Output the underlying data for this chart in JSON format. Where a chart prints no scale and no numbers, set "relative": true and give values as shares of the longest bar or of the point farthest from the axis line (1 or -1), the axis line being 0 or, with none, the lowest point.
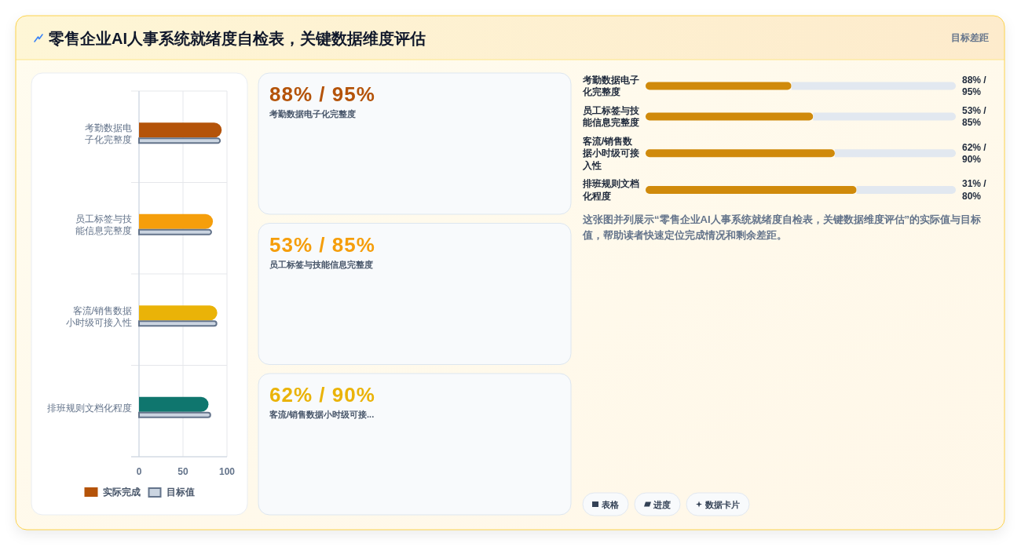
{
  "chart_data": [
    {
      "type": "bar",
      "orientation": "horizontal",
      "title": "零售企业AI人事系统就绪度自检表，关键数据维度评估",
      "categories": [
        "考勤数据电子化完整度",
        "员工标签与技能信息完整度",
        "客流/销售数据小时级可接入性",
        "排班规则文档化程度"
      ],
      "series": [
        {
          "name": "实际完成",
          "color": "#b45309",
          "colors": [
            "#b45309",
            "#f59e0b",
            "#eab308",
            "#0f766e"
          ],
          "values": [
            94,
            84,
            89,
            79
          ]
        },
        {
          "name": "目标值",
          "color": "#cbd5e1",
          "values": [
            93,
            83,
            89,
            82
          ]
        }
      ],
      "xlim": [
        0,
        100
      ],
      "xticks": [
        0,
        50,
        100
      ],
      "grid": true,
      "legend": "bottom"
    },
    {
      "type": "other",
      "categories": [
        "考勤数据电子化完整度",
        "员工标签与技能信息完整度",
        "客流/销售数据小时级可接..."
      ],
      "value_labels": [
        "88% / 95%",
        "53% / 85%",
        "62% / 90%"
      ]
    },
    {
      "type": "bar",
      "orientation": "horizontal",
      "stacked": true,
      "relative": true,
      "subtitle": "目标差距",
      "categories": [
        "考勤数据电子化完整度",
        "员工标签与技能信息完整度",
        "客流/销售数据小时级可接入性",
        "排班规则文档化程度"
      ],
      "series": [
        {
          "color": "#d08a0b",
          "values": [
            0.47,
            0.54,
            0.61,
            0.68
          ]
        },
        {
          "color": "#e2e8f0",
          "values": [
            0.53,
            0.46,
            0.39,
            0.32
          ]
        }
      ],
      "annotations": [
        "88% / 95%",
        "53% / 85%",
        "62% / 90%",
        "31% / 80%",
        "这张图并列展示“零售企业AI人事系统就绪度自检表，关键数据维度评估”的实际值与目标值，帮助读者快速定位完成情况和剩余差距。"
      ]
    },
    {
      "type": "other",
      "annotations": [
        "表格",
        "进度",
        "数据卡片"
      ]
    }
  ]
}
